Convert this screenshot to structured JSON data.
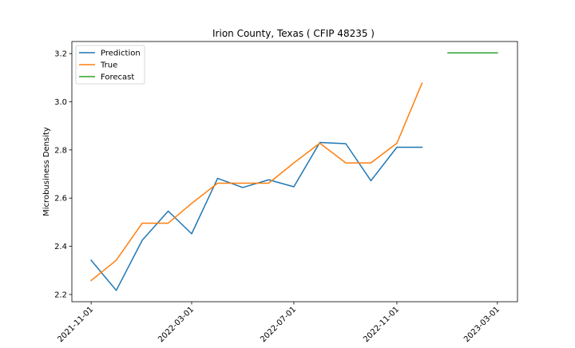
{
  "chart_data": {
    "type": "line",
    "title": "Irion County, Texas ( CFIP 48235 )",
    "xlabel": "",
    "ylabel": "Microbusiness Density",
    "xlim": [
      "2021-10-09",
      "2023-03-25"
    ],
    "ylim": [
      2.17,
      3.25
    ],
    "x_ticks": [
      "2021-11-01",
      "2022-03-01",
      "2022-07-01",
      "2022-11-01",
      "2023-03-01"
    ],
    "y_ticks": [
      2.2,
      2.4,
      2.6,
      2.8,
      3.0,
      3.2
    ],
    "y_tick_labels": [
      "2.2",
      "2.4",
      "2.6",
      "2.8",
      "3.0",
      "3.2"
    ],
    "legend_position": "top-left",
    "grid": false,
    "series": [
      {
        "name": "Prediction",
        "color": "#1f77b4",
        "points": [
          {
            "x": "2021-11-01",
            "y": 2.342
          },
          {
            "x": "2021-12-01",
            "y": 2.217
          },
          {
            "x": "2022-01-01",
            "y": 2.425
          },
          {
            "x": "2022-02-01",
            "y": 2.546
          },
          {
            "x": "2022-03-01",
            "y": 2.452
          },
          {
            "x": "2022-04-01",
            "y": 2.682
          },
          {
            "x": "2022-05-01",
            "y": 2.644
          },
          {
            "x": "2022-06-01",
            "y": 2.676
          },
          {
            "x": "2022-07-01",
            "y": 2.647
          },
          {
            "x": "2022-08-01",
            "y": 2.831
          },
          {
            "x": "2022-09-01",
            "y": 2.826
          },
          {
            "x": "2022-10-01",
            "y": 2.672
          },
          {
            "x": "2022-11-01",
            "y": 2.811
          },
          {
            "x": "2022-12-01",
            "y": 2.811
          }
        ]
      },
      {
        "name": "True",
        "color": "#ff7f0e",
        "points": [
          {
            "x": "2021-11-01",
            "y": 2.258
          },
          {
            "x": "2021-12-01",
            "y": 2.342
          },
          {
            "x": "2022-01-01",
            "y": 2.496
          },
          {
            "x": "2022-02-01",
            "y": 2.496
          },
          {
            "x": "2022-03-01",
            "y": 2.578
          },
          {
            "x": "2022-04-01",
            "y": 2.662
          },
          {
            "x": "2022-05-01",
            "y": 2.662
          },
          {
            "x": "2022-06-01",
            "y": 2.662
          },
          {
            "x": "2022-07-01",
            "y": 2.746
          },
          {
            "x": "2022-08-01",
            "y": 2.828
          },
          {
            "x": "2022-09-01",
            "y": 2.746
          },
          {
            "x": "2022-10-01",
            "y": 2.746
          },
          {
            "x": "2022-11-01",
            "y": 2.828
          },
          {
            "x": "2022-12-01",
            "y": 3.077
          }
        ]
      },
      {
        "name": "Forecast",
        "color": "#2ca02c",
        "points": [
          {
            "x": "2023-01-01",
            "y": 3.203
          },
          {
            "x": "2023-02-01",
            "y": 3.203
          },
          {
            "x": "2023-03-01",
            "y": 3.203
          }
        ]
      }
    ]
  }
}
